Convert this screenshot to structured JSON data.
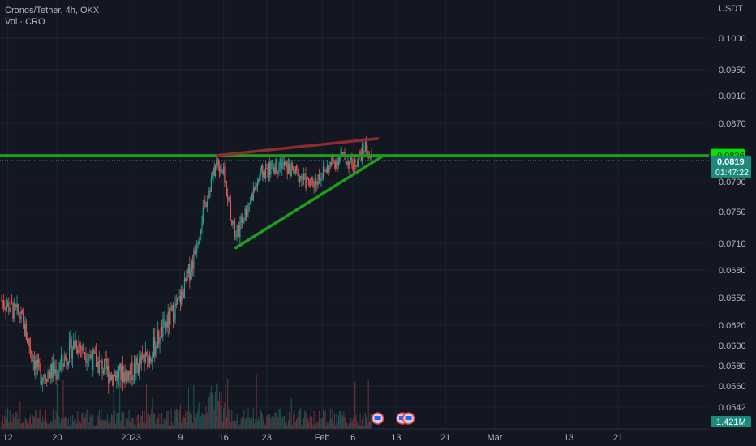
{
  "header": {
    "symbol_line": "Cronos/Tether, 4h, OKX",
    "volume_line": "Vol · CRO"
  },
  "colors": {
    "background": "#131722",
    "grid": "#1e222d",
    "up": "#26a69a",
    "down": "#ef5350",
    "horizontal_line": "#1f9d1f",
    "upper_trendline": "#8e2b2b",
    "lower_trendline": "#1f9d1f",
    "axis_text": "#b2b5be",
    "last_price_bg": "#1c8a7a",
    "line_label_bg": "#00e600"
  },
  "chart_data": {
    "type": "candlestick",
    "timeframe": "4h",
    "currency": "USDT",
    "x_ticks": [
      "12",
      "20",
      "2023",
      "9",
      "16",
      "23",
      "Feb",
      "6",
      "13",
      "21",
      "Mar",
      "13",
      "21"
    ],
    "y_ticks": [
      "0.1000",
      "0.0950",
      "0.0910",
      "0.0870",
      "0.0790",
      "0.0750",
      "0.0710",
      "0.0680",
      "0.0650",
      "0.0620",
      "0.0600",
      "0.0580",
      "0.0560",
      "0.0542"
    ],
    "price_path": [
      {
        "date": "Dec 11",
        "price": 0.0647
      },
      {
        "date": "Dec 14",
        "price": 0.063
      },
      {
        "date": "Dec 17",
        "price": 0.0572
      },
      {
        "date": "Dec 20",
        "price": 0.0575
      },
      {
        "date": "Dec 23",
        "price": 0.0604
      },
      {
        "date": "Dec 26",
        "price": 0.0585
      },
      {
        "date": "Dec 29",
        "price": 0.057
      },
      {
        "date": "Jan 1",
        "price": 0.0574
      },
      {
        "date": "Jan 4",
        "price": 0.059
      },
      {
        "date": "Jan 7",
        "price": 0.0625
      },
      {
        "date": "Jan 9",
        "price": 0.0648
      },
      {
        "date": "Jan 11",
        "price": 0.069
      },
      {
        "date": "Jan 13",
        "price": 0.076
      },
      {
        "date": "Jan 15",
        "price": 0.082
      },
      {
        "date": "Jan 16",
        "price": 0.08
      },
      {
        "date": "Jan 18",
        "price": 0.0715
      },
      {
        "date": "Jan 20",
        "price": 0.076
      },
      {
        "date": "Jan 22",
        "price": 0.08
      },
      {
        "date": "Jan 25",
        "price": 0.0815
      },
      {
        "date": "Jan 28",
        "price": 0.08
      },
      {
        "date": "Jan 30",
        "price": 0.0785
      },
      {
        "date": "Feb 2",
        "price": 0.081
      },
      {
        "date": "Feb 4",
        "price": 0.0825
      },
      {
        "date": "Feb 6",
        "price": 0.0812
      },
      {
        "date": "Feb 8",
        "price": 0.0838
      },
      {
        "date": "Feb 9",
        "price": 0.0819
      }
    ],
    "volume_last": "1.421M",
    "horizontal_line": {
      "price": 0.0826,
      "label": "0.0826"
    },
    "upper_trendline": {
      "from": {
        "date": "Jan 15",
        "price": 0.0826
      },
      "to": {
        "date": "Feb 10",
        "price": 0.0849
      }
    },
    "lower_trendline": {
      "from": {
        "date": "Jan 18",
        "price": 0.0705
      },
      "to": {
        "date": "Feb 11",
        "price": 0.0826
      }
    },
    "last_price": {
      "price": "0.0819",
      "countdown": "01:47:22"
    }
  }
}
